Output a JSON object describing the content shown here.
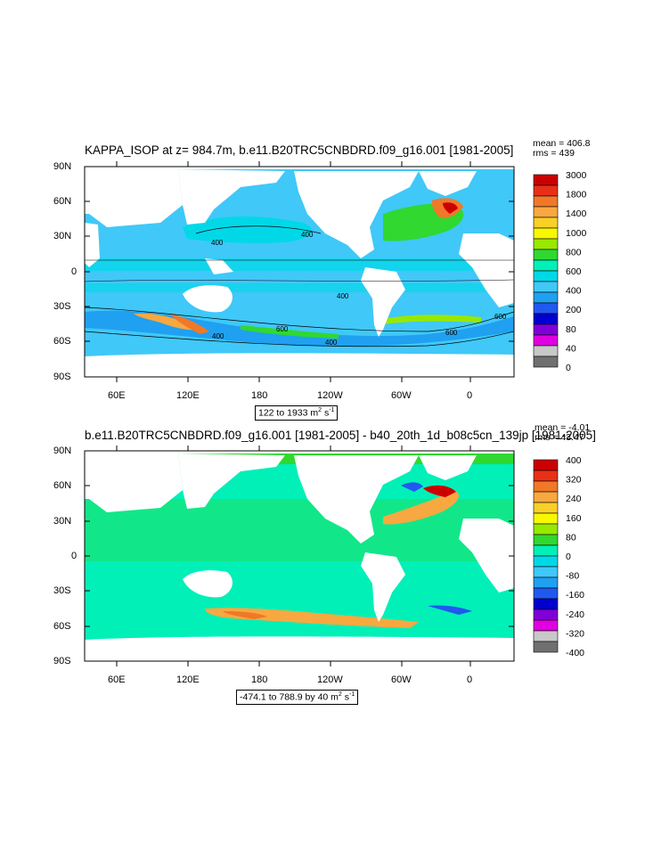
{
  "panels": [
    {
      "title": "KAPPA_ISOP at z= 984.7m, b.e11.B20TRC5CNBDRD.f09_g16.001 [1981-2005]",
      "stats": {
        "mean": "mean = 406.8",
        "rms": "rms = 439"
      },
      "range_label": {
        "text": "122 to 1933 m",
        "sup": "2",
        "unit": " s",
        "sup2": "-1"
      },
      "colorbar": {
        "labels": [
          "3000",
          "1800",
          "1400",
          "1000",
          "800",
          "600",
          "400",
          "200",
          "80",
          "40",
          "0"
        ],
        "colors": [
          "#cc0000",
          "#e83018",
          "#f07828",
          "#f8a840",
          "#f8d028",
          "#f8f800",
          "#98e800",
          "#30d830",
          "#00f0b8",
          "#00d8e8",
          "#40c8f8",
          "#20a0f0",
          "#2058f0",
          "#0000d0",
          "#8000d8",
          "#e000e0",
          "#c8c8c8",
          "#707070"
        ]
      }
    },
    {
      "title": "b.e11.B20TRC5CNBDRD.f09_g16.001 [1981-2005] - b40_20th_1d_b08c5cn_139jp [1981-2005]",
      "stats": {
        "mean": "mean = -4.01",
        "rms": "rms = 43.47"
      },
      "range_label": {
        "text": "-474.1 to 788.9 by 40 m",
        "sup": "2",
        "unit": " s",
        "sup2": "-1"
      },
      "colorbar": {
        "labels": [
          "400",
          "320",
          "240",
          "160",
          "80",
          "0",
          "-80",
          "-160",
          "-240",
          "-320",
          "-400"
        ],
        "colors": [
          "#cc0000",
          "#e83018",
          "#f07828",
          "#f8a840",
          "#f8d028",
          "#f8f800",
          "#98e800",
          "#30d830",
          "#00f0b8",
          "#00d8e8",
          "#40c8f8",
          "#20a0f0",
          "#2058f0",
          "#0000d0",
          "#8000d8",
          "#e000e0",
          "#c8c8c8",
          "#707070"
        ]
      }
    }
  ],
  "axes": {
    "lat_labels": [
      "90N",
      "60N",
      "30N",
      "0",
      "30S",
      "60S",
      "90S"
    ],
    "lon_labels": [
      "60E",
      "120E",
      "180",
      "120W",
      "60W",
      "0"
    ]
  },
  "palette": {
    "ocean_top": "#40c8f8",
    "ocean_bottom": "#40c8f8",
    "land": "#ffffff",
    "green": "#30d830",
    "cyan": "#00f0e0"
  }
}
